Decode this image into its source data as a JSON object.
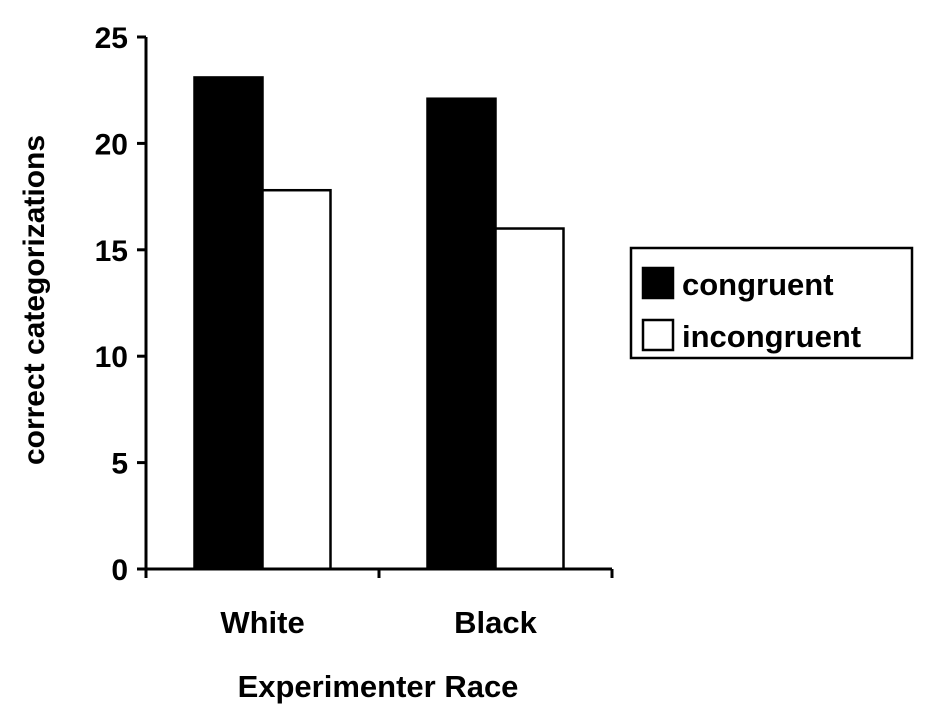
{
  "chart_data": {
    "type": "bar",
    "categories": [
      "White",
      "Black"
    ],
    "series": [
      {
        "name": "congruent",
        "values": [
          23.1,
          22.1
        ],
        "fill": "#000000"
      },
      {
        "name": "incongruent",
        "values": [
          17.8,
          16.0
        ],
        "fill": "#ffffff"
      }
    ],
    "xlabel": "Experimenter Race",
    "ylabel": "correct categorizations",
    "ylim": [
      0,
      25
    ],
    "yticks": [
      "0",
      "5",
      "10",
      "15",
      "20",
      "25"
    ],
    "grid": false,
    "legend_position": "right"
  }
}
